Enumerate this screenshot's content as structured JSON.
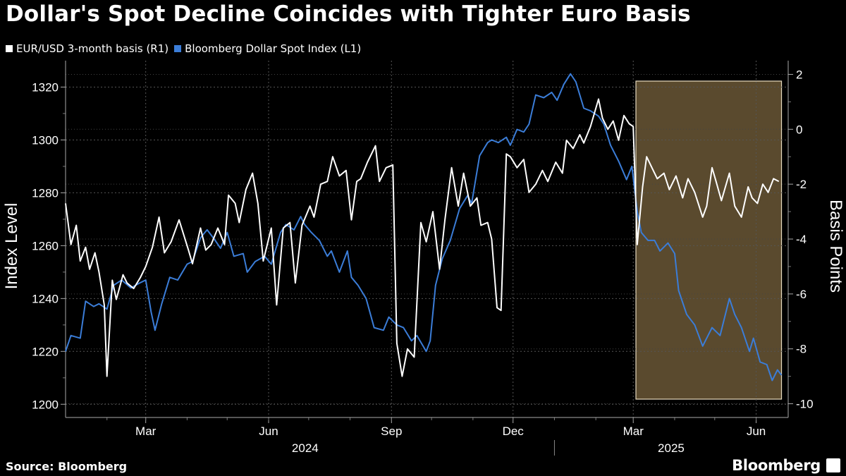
{
  "title": "Dollar's Spot Decline Coincides with Tighter Euro Basis",
  "legend": [
    {
      "label": "EUR/USD 3-month basis (R1)",
      "color": "#ffffff"
    },
    {
      "label": "Bloomberg Dollar Spot Index (L1)",
      "color": "#3b7dd8"
    }
  ],
  "source": "Source: Bloomberg",
  "brand": "Bloomberg",
  "chart_data": {
    "type": "line",
    "left_axis": {
      "label": "Index Level",
      "ticks": [
        1200,
        1220,
        1240,
        1260,
        1280,
        1300,
        1320
      ],
      "range": [
        1195,
        1330
      ]
    },
    "right_axis": {
      "label": "Basis Points",
      "ticks": [
        -10,
        -8,
        -6,
        -4,
        -2,
        0,
        2
      ],
      "range": [
        -10.5,
        2.5
      ]
    },
    "x_range": [
      "2024-01-01",
      "2025-06-25"
    ],
    "x_tick_labels": [
      {
        "label": "Mar",
        "date": "2024-03-01"
      },
      {
        "label": "Jun",
        "date": "2024-06-01"
      },
      {
        "label": "Sep",
        "date": "2024-09-01"
      },
      {
        "label": "Dec",
        "date": "2024-12-01"
      },
      {
        "label": "Mar",
        "date": "2025-03-01"
      },
      {
        "label": "Jun",
        "date": "2025-06-01"
      }
    ],
    "year_labels": [
      {
        "label": "2024",
        "date": "2024-07-01"
      },
      {
        "label": "2025",
        "date": "2025-04-01"
      }
    ],
    "highlight": {
      "start": "2025-03-03",
      "end": "2025-06-20",
      "color": "#5a4a2e"
    },
    "grid": true,
    "series": [
      {
        "name": "Bloomberg Dollar Spot Index (L1)",
        "axis": "left",
        "color": "#3b7dd8",
        "points": [
          [
            "2024-01-01",
            1220
          ],
          [
            "2024-01-05",
            1226
          ],
          [
            "2024-01-12",
            1225
          ],
          [
            "2024-01-16",
            1239
          ],
          [
            "2024-01-22",
            1237
          ],
          [
            "2024-01-26",
            1238
          ],
          [
            "2024-02-01",
            1236
          ],
          [
            "2024-02-06",
            1245
          ],
          [
            "2024-02-12",
            1247
          ],
          [
            "2024-02-19",
            1244
          ],
          [
            "2024-02-26",
            1246
          ],
          [
            "2024-03-01",
            1247
          ],
          [
            "2024-03-05",
            1235
          ],
          [
            "2024-03-08",
            1228
          ],
          [
            "2024-03-13",
            1238
          ],
          [
            "2024-03-19",
            1248
          ],
          [
            "2024-03-25",
            1247
          ],
          [
            "2024-04-01",
            1253
          ],
          [
            "2024-04-05",
            1254
          ],
          [
            "2024-04-11",
            1263
          ],
          [
            "2024-04-16",
            1266
          ],
          [
            "2024-04-22",
            1262
          ],
          [
            "2024-04-26",
            1259
          ],
          [
            "2024-05-01",
            1265
          ],
          [
            "2024-05-06",
            1256
          ],
          [
            "2024-05-13",
            1257
          ],
          [
            "2024-05-16",
            1250
          ],
          [
            "2024-05-22",
            1254
          ],
          [
            "2024-05-29",
            1256
          ],
          [
            "2024-06-03",
            1253
          ],
          [
            "2024-06-10",
            1265
          ],
          [
            "2024-06-14",
            1268
          ],
          [
            "2024-06-20",
            1266
          ],
          [
            "2024-06-25",
            1271
          ],
          [
            "2024-06-28",
            1268
          ],
          [
            "2024-07-03",
            1265
          ],
          [
            "2024-07-09",
            1262
          ],
          [
            "2024-07-15",
            1256
          ],
          [
            "2024-07-18",
            1258
          ],
          [
            "2024-07-24",
            1250
          ],
          [
            "2024-07-30",
            1258
          ],
          [
            "2024-08-02",
            1248
          ],
          [
            "2024-08-07",
            1245
          ],
          [
            "2024-08-13",
            1240
          ],
          [
            "2024-08-19",
            1229
          ],
          [
            "2024-08-26",
            1228
          ],
          [
            "2024-08-30",
            1233
          ],
          [
            "2024-09-05",
            1230
          ],
          [
            "2024-09-10",
            1229
          ],
          [
            "2024-09-16",
            1224
          ],
          [
            "2024-09-20",
            1226
          ],
          [
            "2024-09-27",
            1220
          ],
          [
            "2024-09-30",
            1224
          ],
          [
            "2024-10-04",
            1245
          ],
          [
            "2024-10-09",
            1255
          ],
          [
            "2024-10-15",
            1262
          ],
          [
            "2024-10-22",
            1274
          ],
          [
            "2024-10-28",
            1279
          ],
          [
            "2024-10-31",
            1276
          ],
          [
            "2024-11-06",
            1294
          ],
          [
            "2024-11-12",
            1299
          ],
          [
            "2024-11-15",
            1300
          ],
          [
            "2024-11-20",
            1299
          ],
          [
            "2024-11-26",
            1301
          ],
          [
            "2024-11-29",
            1298
          ],
          [
            "2024-12-04",
            1304
          ],
          [
            "2024-12-09",
            1303
          ],
          [
            "2024-12-13",
            1306
          ],
          [
            "2024-12-18",
            1317
          ],
          [
            "2024-12-24",
            1316
          ],
          [
            "2024-12-30",
            1318
          ],
          [
            "2025-01-03",
            1315
          ],
          [
            "2025-01-08",
            1321
          ],
          [
            "2025-01-13",
            1325
          ],
          [
            "2025-01-17",
            1322
          ],
          [
            "2025-01-23",
            1312
          ],
          [
            "2025-01-28",
            1311
          ],
          [
            "2025-02-03",
            1309
          ],
          [
            "2025-02-07",
            1306
          ],
          [
            "2025-02-12",
            1298
          ],
          [
            "2025-02-18",
            1292
          ],
          [
            "2025-02-24",
            1285
          ],
          [
            "2025-02-28",
            1290
          ],
          [
            "2025-03-04",
            1273
          ],
          [
            "2025-03-07",
            1265
          ],
          [
            "2025-03-12",
            1262
          ],
          [
            "2025-03-17",
            1262
          ],
          [
            "2025-03-21",
            1258
          ],
          [
            "2025-03-27",
            1261
          ],
          [
            "2025-04-01",
            1257
          ],
          [
            "2025-04-04",
            1243
          ],
          [
            "2025-04-10",
            1234
          ],
          [
            "2025-04-16",
            1230
          ],
          [
            "2025-04-22",
            1222
          ],
          [
            "2025-04-29",
            1229
          ],
          [
            "2025-05-05",
            1226
          ],
          [
            "2025-05-12",
            1240
          ],
          [
            "2025-05-16",
            1234
          ],
          [
            "2025-05-21",
            1229
          ],
          [
            "2025-05-27",
            1220
          ],
          [
            "2025-05-30",
            1225
          ],
          [
            "2025-06-04",
            1216
          ],
          [
            "2025-06-09",
            1215
          ],
          [
            "2025-06-13",
            1209
          ],
          [
            "2025-06-17",
            1213
          ],
          [
            "2025-06-20",
            1211
          ]
        ]
      },
      {
        "name": "EUR/USD 3-month basis (R1)",
        "axis": "right",
        "color": "#ffffff",
        "points": [
          [
            "2024-01-01",
            -2.7
          ],
          [
            "2024-01-05",
            -4.2
          ],
          [
            "2024-01-09",
            -3.5
          ],
          [
            "2024-01-12",
            -4.8
          ],
          [
            "2024-01-16",
            -4.3
          ],
          [
            "2024-01-19",
            -5.1
          ],
          [
            "2024-01-23",
            -4.5
          ],
          [
            "2024-01-26",
            -5.2
          ],
          [
            "2024-01-30",
            -6.4
          ],
          [
            "2024-02-01",
            -9.0
          ],
          [
            "2024-02-05",
            -5.5
          ],
          [
            "2024-02-08",
            -6.2
          ],
          [
            "2024-02-13",
            -5.3
          ],
          [
            "2024-02-16",
            -5.6
          ],
          [
            "2024-02-21",
            -5.8
          ],
          [
            "2024-02-26",
            -5.4
          ],
          [
            "2024-03-01",
            -5.0
          ],
          [
            "2024-03-06",
            -4.3
          ],
          [
            "2024-03-11",
            -3.2
          ],
          [
            "2024-03-15",
            -4.5
          ],
          [
            "2024-03-20",
            -4.1
          ],
          [
            "2024-03-26",
            -3.3
          ],
          [
            "2024-04-02",
            -4.4
          ],
          [
            "2024-04-05",
            -4.9
          ],
          [
            "2024-04-11",
            -3.6
          ],
          [
            "2024-04-15",
            -4.4
          ],
          [
            "2024-04-19",
            -4.2
          ],
          [
            "2024-04-24",
            -3.6
          ],
          [
            "2024-04-29",
            -4.2
          ],
          [
            "2024-05-02",
            -2.4
          ],
          [
            "2024-05-07",
            -2.7
          ],
          [
            "2024-05-10",
            -3.4
          ],
          [
            "2024-05-15",
            -2.2
          ],
          [
            "2024-05-20",
            -1.6
          ],
          [
            "2024-05-24",
            -2.7
          ],
          [
            "2024-05-28",
            -4.8
          ],
          [
            "2024-06-03",
            -3.6
          ],
          [
            "2024-06-07",
            -6.4
          ],
          [
            "2024-06-12",
            -3.6
          ],
          [
            "2024-06-17",
            -3.4
          ],
          [
            "2024-06-21",
            -5.6
          ],
          [
            "2024-06-26",
            -3.5
          ],
          [
            "2024-07-02",
            -2.8
          ],
          [
            "2024-07-05",
            -3.2
          ],
          [
            "2024-07-10",
            -2.0
          ],
          [
            "2024-07-15",
            -1.9
          ],
          [
            "2024-07-19",
            -1.0
          ],
          [
            "2024-07-24",
            -1.7
          ],
          [
            "2024-07-29",
            -1.5
          ],
          [
            "2024-08-02",
            -3.3
          ],
          [
            "2024-08-06",
            -1.9
          ],
          [
            "2024-08-09",
            -1.8
          ],
          [
            "2024-08-14",
            -1.2
          ],
          [
            "2024-08-20",
            -0.6
          ],
          [
            "2024-08-23",
            -1.9
          ],
          [
            "2024-08-28",
            -1.4
          ],
          [
            "2024-09-02",
            -1.3
          ],
          [
            "2024-09-05",
            -7.8
          ],
          [
            "2024-09-09",
            -9.0
          ],
          [
            "2024-09-13",
            -8.0
          ],
          [
            "2024-09-18",
            -8.3
          ],
          [
            "2024-09-23",
            -3.4
          ],
          [
            "2024-09-27",
            -4.1
          ],
          [
            "2024-10-02",
            -3.0
          ],
          [
            "2024-10-07",
            -5.1
          ],
          [
            "2024-10-11",
            -3.3
          ],
          [
            "2024-10-16",
            -1.4
          ],
          [
            "2024-10-21",
            -2.8
          ],
          [
            "2024-10-25",
            -1.6
          ],
          [
            "2024-10-30",
            -2.8
          ],
          [
            "2024-11-04",
            -2.5
          ],
          [
            "2024-11-07",
            -3.5
          ],
          [
            "2024-11-12",
            -3.4
          ],
          [
            "2024-11-15",
            -4.0
          ],
          [
            "2024-11-19",
            -6.5
          ],
          [
            "2024-11-22",
            -6.6
          ],
          [
            "2024-11-26",
            -0.9
          ],
          [
            "2024-11-29",
            -1.0
          ],
          [
            "2024-12-04",
            -1.4
          ],
          [
            "2024-12-09",
            -1.1
          ],
          [
            "2024-12-13",
            -2.3
          ],
          [
            "2024-12-18",
            -2.0
          ],
          [
            "2024-12-23",
            -1.5
          ],
          [
            "2024-12-27",
            -1.9
          ],
          [
            "2025-01-02",
            -1.2
          ],
          [
            "2025-01-07",
            -1.6
          ],
          [
            "2025-01-10",
            -0.4
          ],
          [
            "2025-01-15",
            -0.7
          ],
          [
            "2025-01-20",
            -0.2
          ],
          [
            "2025-01-23",
            -0.5
          ],
          [
            "2025-01-28",
            0.1
          ],
          [
            "2025-02-03",
            1.1
          ],
          [
            "2025-02-06",
            0.4
          ],
          [
            "2025-02-10",
            0.0
          ],
          [
            "2025-02-14",
            0.3
          ],
          [
            "2025-02-18",
            -0.4
          ],
          [
            "2025-02-22",
            0.5
          ],
          [
            "2025-02-26",
            0.2
          ],
          [
            "2025-03-01",
            0.1
          ],
          [
            "2025-03-04",
            -4.2
          ],
          [
            "2025-03-08",
            -2.1
          ],
          [
            "2025-03-11",
            -1.0
          ],
          [
            "2025-03-15",
            -1.4
          ],
          [
            "2025-03-19",
            -1.8
          ],
          [
            "2025-03-24",
            -1.6
          ],
          [
            "2025-03-28",
            -2.2
          ],
          [
            "2025-04-02",
            -1.7
          ],
          [
            "2025-04-07",
            -2.5
          ],
          [
            "2025-04-11",
            -1.8
          ],
          [
            "2025-04-16",
            -2.3
          ],
          [
            "2025-04-22",
            -3.2
          ],
          [
            "2025-04-25",
            -2.8
          ],
          [
            "2025-04-29",
            -1.4
          ],
          [
            "2025-05-02",
            -1.9
          ],
          [
            "2025-05-06",
            -2.6
          ],
          [
            "2025-05-12",
            -1.6
          ],
          [
            "2025-05-16",
            -2.8
          ],
          [
            "2025-05-21",
            -3.2
          ],
          [
            "2025-05-26",
            -2.1
          ],
          [
            "2025-05-29",
            -2.5
          ],
          [
            "2025-06-02",
            -2.7
          ],
          [
            "2025-06-06",
            -2.0
          ],
          [
            "2025-06-10",
            -2.3
          ],
          [
            "2025-06-14",
            -1.8
          ],
          [
            "2025-06-18",
            -1.9
          ]
        ]
      }
    ]
  }
}
